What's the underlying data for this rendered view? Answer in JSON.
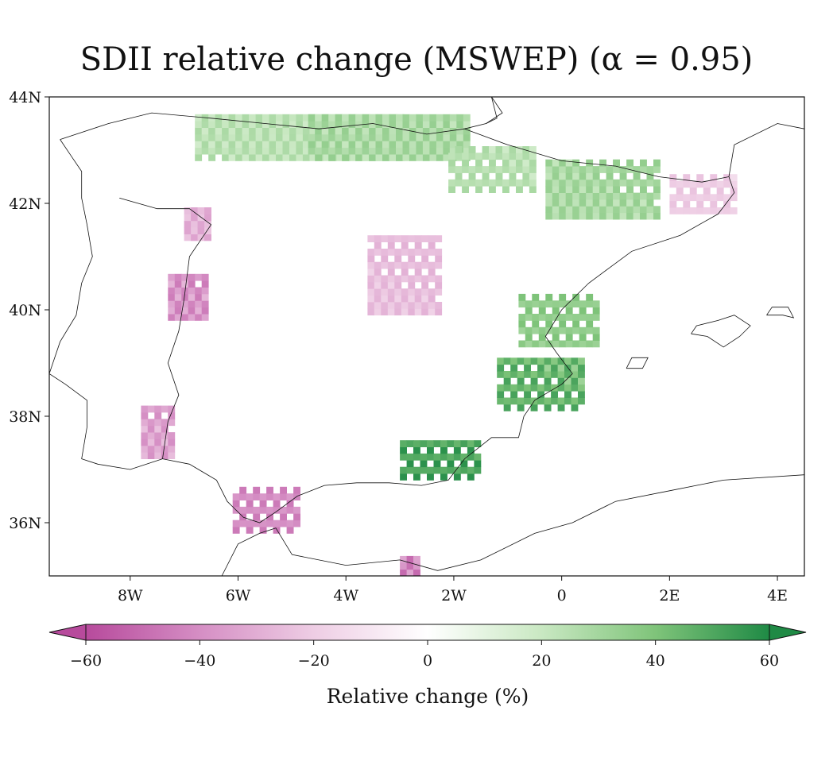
{
  "title": "SDII relative change (MSWEP) (α = 0.95)",
  "map": {
    "lon_range": [
      -9.5,
      4.5
    ],
    "lat_range": [
      35.0,
      44.0
    ],
    "lon_ticks": [
      {
        "value": -8,
        "label": "8W"
      },
      {
        "value": -6,
        "label": "6W"
      },
      {
        "value": -4,
        "label": "4W"
      },
      {
        "value": -2,
        "label": "2W"
      },
      {
        "value": 0,
        "label": "0"
      },
      {
        "value": 2,
        "label": "2E"
      },
      {
        "value": 4,
        "label": "4E"
      }
    ],
    "lat_ticks": [
      {
        "value": 44,
        "label": "44N"
      },
      {
        "value": 42,
        "label": "42N"
      },
      {
        "value": 40,
        "label": "40N"
      },
      {
        "value": 38,
        "label": "38N"
      },
      {
        "value": 36,
        "label": "36N"
      }
    ],
    "regions": [
      {
        "name": "cantabrian-coast-positive",
        "lon_min": -6.8,
        "lon_max": -3.0,
        "lat_min": 42.8,
        "lat_max": 43.6,
        "value": 25
      },
      {
        "name": "basque-positive",
        "lon_min": -4.7,
        "lon_max": -1.8,
        "lat_min": 42.8,
        "lat_max": 43.6,
        "value": 30
      },
      {
        "name": "navarra-positive",
        "lon_min": -2.1,
        "lon_max": -0.5,
        "lat_min": 42.2,
        "lat_max": 43.0,
        "value": 25
      },
      {
        "name": "pyrenees-positive",
        "lon_min": -0.3,
        "lon_max": 1.8,
        "lat_min": 41.7,
        "lat_max": 42.8,
        "value": 30
      },
      {
        "name": "catalonia-mixed",
        "lon_min": 2.0,
        "lon_max": 3.2,
        "lat_min": 41.8,
        "lat_max": 42.5,
        "value": -20
      },
      {
        "name": "galicia-negative",
        "lon_min": -7.0,
        "lon_max": -6.6,
        "lat_min": 41.3,
        "lat_max": 41.9,
        "value": -30
      },
      {
        "name": "douro-negative",
        "lon_min": -7.3,
        "lon_max": -6.6,
        "lat_min": 39.8,
        "lat_max": 40.6,
        "value": -40
      },
      {
        "name": "central-negative",
        "lon_min": -3.6,
        "lon_max": -2.3,
        "lat_min": 39.9,
        "lat_max": 41.4,
        "value": -25
      },
      {
        "name": "portugal-south-negative",
        "lon_min": -7.8,
        "lon_max": -7.2,
        "lat_min": 37.2,
        "lat_max": 38.2,
        "value": -35
      },
      {
        "name": "gibraltar-negative",
        "lon_min": -6.1,
        "lon_max": -4.9,
        "lat_min": 35.8,
        "lat_max": 36.6,
        "value": -40
      },
      {
        "name": "valencia-positive",
        "lon_min": -0.8,
        "lon_max": 0.6,
        "lat_min": 39.3,
        "lat_max": 40.3,
        "value": 35
      },
      {
        "name": "murcia-positive",
        "lon_min": -1.2,
        "lon_max": 0.4,
        "lat_min": 38.1,
        "lat_max": 39.0,
        "value": 45
      },
      {
        "name": "almeria-positive",
        "lon_min": -3.0,
        "lon_max": -1.6,
        "lat_min": 36.8,
        "lat_max": 37.5,
        "value": 50
      },
      {
        "name": "alboran-negative",
        "lon_min": -3.0,
        "lon_max": -2.7,
        "lat_min": 35.0,
        "lat_max": 35.3,
        "value": -45
      }
    ]
  },
  "colorbar": {
    "ticks": [
      {
        "value": -60,
        "label": "−60"
      },
      {
        "value": -40,
        "label": "−40"
      },
      {
        "value": -20,
        "label": "−20"
      },
      {
        "value": 0,
        "label": "0"
      },
      {
        "value": 20,
        "label": "20"
      },
      {
        "value": 40,
        "label": "40"
      },
      {
        "value": 60,
        "label": "60"
      }
    ],
    "range": [
      -60,
      60
    ],
    "colors": [
      "#b74a9c",
      "#d58ec4",
      "#eecde4",
      "#ffffff",
      "#c9e8c2",
      "#7fc47a",
      "#1f8a45"
    ],
    "label": "Relative change (%)"
  }
}
